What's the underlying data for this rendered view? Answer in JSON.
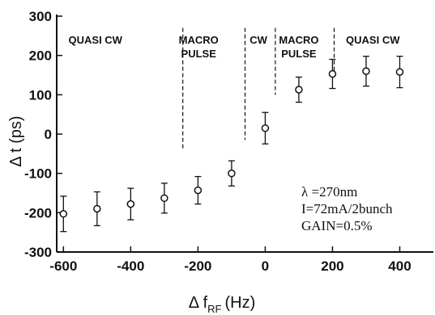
{
  "chart_data": {
    "type": "scatter",
    "title": "",
    "xlabel": "Δf_RF (Hz)",
    "xlabel_main": "Δ f",
    "xlabel_sub": "RF",
    "xlabel_unit": "(Hz)",
    "ylabel": "Δ t  (ps)",
    "xlim": [
      -620,
      500
    ],
    "ylim": [
      -300,
      300
    ],
    "xticks": [
      -600,
      -400,
      -200,
      0,
      200,
      400
    ],
    "yticks": [
      -300,
      -200,
      -100,
      0,
      100,
      200,
      300
    ],
    "grid": false,
    "points": [
      {
        "x": -600,
        "y": -203,
        "err": 45
      },
      {
        "x": -500,
        "y": -190,
        "err": 43
      },
      {
        "x": -400,
        "y": -178,
        "err": 40
      },
      {
        "x": -300,
        "y": -163,
        "err": 38
      },
      {
        "x": -200,
        "y": -143,
        "err": 35
      },
      {
        "x": -100,
        "y": -100,
        "err": 32
      },
      {
        "x": 0,
        "y": 15,
        "err": 40
      },
      {
        "x": 100,
        "y": 113,
        "err": 32
      },
      {
        "x": 200,
        "y": 153,
        "err": 37
      },
      {
        "x": 300,
        "y": 160,
        "err": 38
      },
      {
        "x": 400,
        "y": 158,
        "err": 40
      }
    ],
    "boundaries": [
      {
        "x": -245,
        "ytop": 270,
        "ybottom": -40
      },
      {
        "x": -60,
        "ytop": 270,
        "ybottom": -15
      },
      {
        "x": 30,
        "ytop": 270,
        "ybottom": 100
      },
      {
        "x": 205,
        "ytop": 270,
        "ybottom": 140
      }
    ],
    "regions": [
      {
        "lines": [
          "QUASI CW"
        ],
        "x": -505
      },
      {
        "lines": [
          "MACRO",
          "PULSE"
        ],
        "x": -198
      },
      {
        "lines": [
          "CW"
        ],
        "x": -20
      },
      {
        "lines": [
          "MACRO",
          "PULSE"
        ],
        "x": 100
      },
      {
        "lines": [
          "QUASI CW"
        ],
        "x": 320
      }
    ],
    "annotations": [
      "λ =270nm",
      "I=72mA/2bunch",
      "GAIN=0.5%"
    ]
  }
}
